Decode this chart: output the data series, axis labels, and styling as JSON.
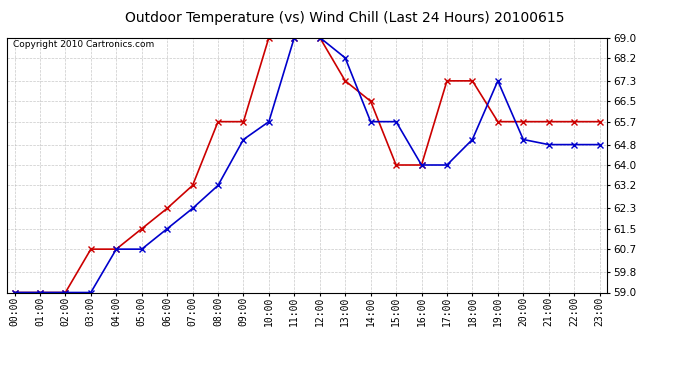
{
  "title": "Outdoor Temperature (vs) Wind Chill (Last 24 Hours) 20100615",
  "copyright": "Copyright 2010 Cartronics.com",
  "hours": [
    "00:00",
    "01:00",
    "02:00",
    "03:00",
    "04:00",
    "05:00",
    "06:00",
    "07:00",
    "08:00",
    "09:00",
    "10:00",
    "11:00",
    "12:00",
    "13:00",
    "14:00",
    "15:00",
    "16:00",
    "17:00",
    "18:00",
    "19:00",
    "20:00",
    "21:00",
    "22:00",
    "23:00"
  ],
  "temp": [
    59.0,
    59.0,
    59.0,
    60.7,
    60.7,
    61.5,
    62.3,
    63.2,
    65.7,
    65.7,
    69.0,
    69.0,
    69.0,
    67.3,
    66.5,
    64.0,
    64.0,
    67.3,
    67.3,
    65.7,
    65.7,
    65.7,
    65.7,
    65.7
  ],
  "windchill": [
    59.0,
    59.0,
    59.0,
    59.0,
    60.7,
    60.7,
    61.5,
    62.3,
    63.2,
    65.0,
    65.7,
    69.0,
    69.0,
    68.2,
    65.7,
    65.7,
    64.0,
    64.0,
    65.0,
    67.3,
    65.0,
    64.8,
    64.8,
    64.8
  ],
  "temp_color": "#cc0000",
  "windchill_color": "#0000cc",
  "ylim_min": 59.0,
  "ylim_max": 69.0,
  "yticks": [
    59.0,
    59.8,
    60.7,
    61.5,
    62.3,
    63.2,
    64.0,
    64.8,
    65.7,
    66.5,
    67.3,
    68.2,
    69.0
  ],
  "bg_color": "#ffffff",
  "grid_color": "#bbbbbb",
  "title_fontsize": 10,
  "copyright_fontsize": 6.5,
  "tick_fontsize": 7,
  "ytick_fontsize": 7.5
}
